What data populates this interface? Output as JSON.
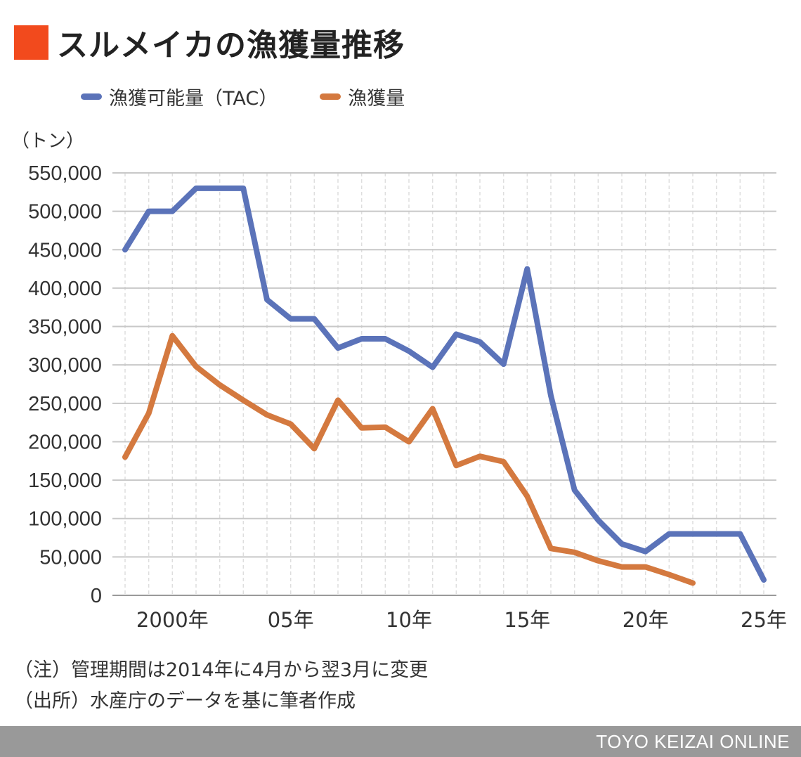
{
  "title": "スルメイカの漁獲量推移",
  "colors": {
    "title_square": "#f24a1d",
    "tac": "#5b73b9",
    "catch": "#d4793f",
    "grid": "#c8c8c8",
    "minor_grid": "#dedede",
    "footer_bg": "#999999"
  },
  "legend": {
    "tac": "漁獲可能量（TAC）",
    "catch": "漁獲量"
  },
  "unit_label": "（トン）",
  "notes": {
    "note1": "（注）管理期間は2014年に4月から翌3月に変更",
    "note2": "（出所）水産庁のデータを基に筆者作成"
  },
  "footer": "TOYO KEIZAI ONLINE",
  "chart_data": {
    "type": "line",
    "x": [
      1998,
      1999,
      2000,
      2001,
      2002,
      2003,
      2004,
      2005,
      2006,
      2007,
      2008,
      2009,
      2010,
      2011,
      2012,
      2013,
      2014,
      2015,
      2016,
      2017,
      2018,
      2019,
      2020,
      2021,
      2022,
      2023,
      2024,
      2025
    ],
    "x_ticks": [
      {
        "value": 2000,
        "label": "2000年"
      },
      {
        "value": 2005,
        "label": "05年"
      },
      {
        "value": 2010,
        "label": "10年"
      },
      {
        "value": 2015,
        "label": "15年"
      },
      {
        "value": 2020,
        "label": "20年"
      },
      {
        "value": 2025,
        "label": "25年"
      }
    ],
    "y_ticks": [
      "0",
      "50,000",
      "100,000",
      "150,000",
      "200,000",
      "250,000",
      "300,000",
      "350,000",
      "400,000",
      "450,000",
      "500,000",
      "550,000"
    ],
    "ylim": [
      0,
      550000
    ],
    "xlim": [
      1998,
      2025
    ],
    "series": [
      {
        "name": "漁獲可能量（TAC）",
        "values": [
          450000,
          500000,
          500000,
          530000,
          530000,
          530000,
          385000,
          360000,
          360000,
          322000,
          334000,
          334000,
          318000,
          297000,
          340000,
          330000,
          301000,
          425000,
          260000,
          137000,
          98000,
          67000,
          57000,
          80000,
          80000,
          80000,
          80000,
          20000
        ]
      },
      {
        "name": "漁獲量",
        "values": [
          180000,
          237000,
          338000,
          298000,
          274000,
          254000,
          235000,
          223000,
          191000,
          254000,
          218000,
          219000,
          200000,
          243000,
          169000,
          181000,
          174000,
          129000,
          61000,
          56000,
          45000,
          37000,
          37000,
          27000,
          16000,
          null,
          null,
          null
        ]
      }
    ]
  }
}
